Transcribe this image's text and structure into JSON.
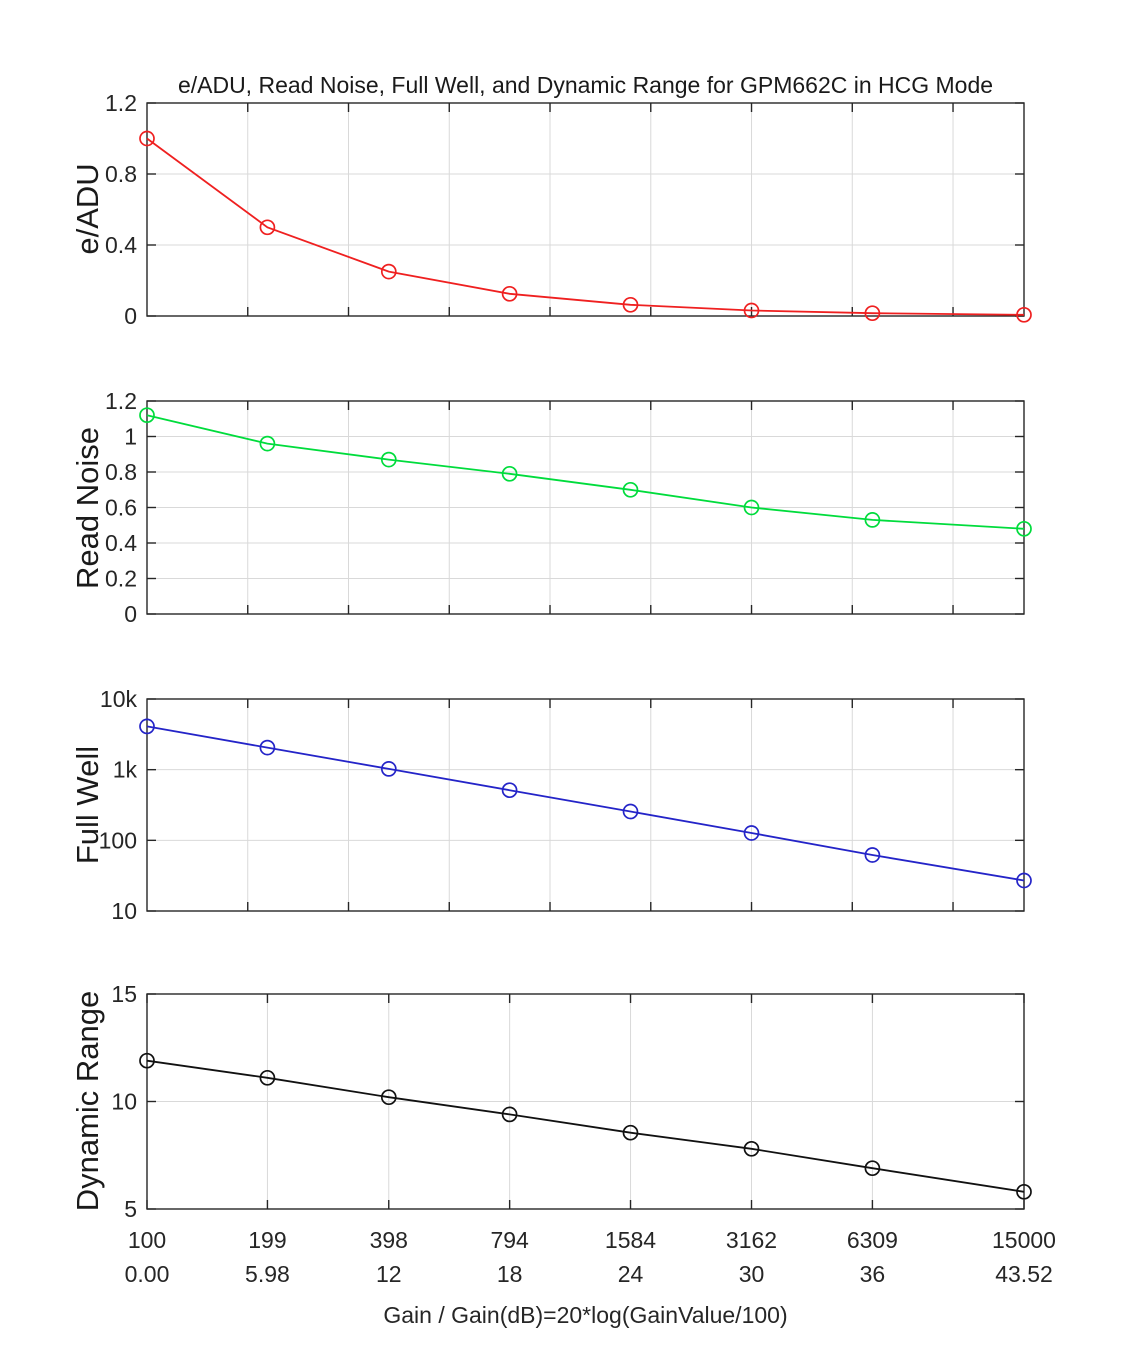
{
  "title": "e/ADU, Read Noise, Full Well, and Dynamic Range for GPM662C in HCG Mode",
  "xlabel": "Gain / Gain(dB)=20*log(GainValue/100)",
  "colors": {
    "red": "#ef2020",
    "green": "#00dc3c",
    "blue": "#2424c8",
    "black": "#111111",
    "grid": "#d9d9d9",
    "axis": "#262626",
    "text": "#262626"
  },
  "chart_data": {
    "type": "line",
    "x_axis": {
      "scale": "log",
      "range": [
        100,
        15000
      ],
      "tick_values": [
        100,
        199,
        398,
        794,
        1584,
        3162,
        6309,
        15000
      ],
      "tick_labels_gain": [
        "100",
        "199",
        "398",
        "794",
        "1584",
        "3162",
        "6309",
        "15000"
      ],
      "tick_labels_db": [
        "0.00",
        "5.98",
        "12",
        "18",
        "24",
        "30",
        "36",
        "43.52"
      ],
      "label": "Gain / Gain(dB)=20*log(GainValue/100)"
    },
    "subplots": [
      {
        "name": "e-adu",
        "ylabel": "e/ADU",
        "color_key": "red",
        "marker": "o",
        "y_scale": "linear",
        "ylim": [
          0,
          1.2
        ],
        "yticks": [
          0,
          0.4,
          0.8,
          1.2
        ],
        "ytick_labels": [
          "0",
          "0.4",
          "0.8",
          "1.2"
        ],
        "x_grid": "quarter_decade",
        "values": [
          1.0,
          0.5,
          0.25,
          0.125,
          0.063,
          0.031,
          0.016,
          0.007
        ]
      },
      {
        "name": "read-noise",
        "ylabel": "Read Noise",
        "color_key": "green",
        "marker": "o",
        "y_scale": "linear",
        "ylim": [
          0,
          1.2
        ],
        "yticks": [
          0,
          0.2,
          0.4,
          0.6,
          0.8,
          1,
          1.2
        ],
        "ytick_labels": [
          "0",
          "0.2",
          "0.4",
          "0.6",
          "0.8",
          "1",
          "1.2"
        ],
        "x_grid": "quarter_decade",
        "values": [
          1.12,
          0.96,
          0.87,
          0.79,
          0.7,
          0.6,
          0.53,
          0.48
        ]
      },
      {
        "name": "full-well",
        "ylabel": "Full Well",
        "color_key": "blue",
        "marker": "o",
        "y_scale": "log",
        "ylim": [
          10,
          10000
        ],
        "yticks": [
          10,
          100,
          1000,
          10000
        ],
        "ytick_labels": [
          "10",
          "100",
          "1k",
          "10k"
        ],
        "x_grid": "quarter_decade",
        "values": [
          4100,
          2050,
          1025,
          512,
          256,
          127,
          62,
          27
        ]
      },
      {
        "name": "dynamic-range",
        "ylabel": "Dynamic Range",
        "color_key": "black",
        "marker": "o",
        "y_scale": "linear",
        "ylim": [
          5,
          15
        ],
        "yticks": [
          5,
          10,
          15
        ],
        "ytick_labels": [
          "5",
          "10",
          "15"
        ],
        "x_grid": "data_ticks",
        "values": [
          11.9,
          11.1,
          10.2,
          9.4,
          8.55,
          7.8,
          6.9,
          5.8
        ]
      }
    ]
  }
}
